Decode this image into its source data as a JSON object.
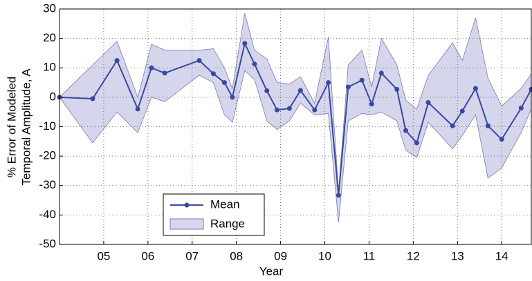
{
  "chart_data": {
    "type": "line-band",
    "ylabel": [
      "% Error of Modeled",
      "Temporal Amplitude, A"
    ],
    "xlabel": "Year",
    "x": [
      4.0,
      4.75,
      5.3,
      5.77,
      6.08,
      6.38,
      7.16,
      7.48,
      7.73,
      7.91,
      8.19,
      8.41,
      8.69,
      8.92,
      9.2,
      9.45,
      9.77,
      10.08,
      10.31,
      10.53,
      10.84,
      11.06,
      11.28,
      11.63,
      11.83,
      12.08,
      12.34,
      12.89,
      13.11,
      13.41,
      13.69,
      14.0,
      14.44,
      14.67
    ],
    "series": [
      {
        "name": "Mean",
        "color": "#3a48a0",
        "values": [
          0,
          -0.5,
          12.5,
          -4,
          10,
          8.2,
          12.5,
          8,
          5,
          0,
          18.3,
          11.3,
          2.2,
          -4.3,
          -3.8,
          2.3,
          -4.3,
          5,
          -33.3,
          3.5,
          5.8,
          -2.3,
          8.2,
          2.7,
          -11.3,
          -15.5,
          -1.8,
          -9.7,
          -4.7,
          3,
          -9.7,
          -14.3,
          -3.7,
          2.7
        ]
      },
      {
        "name": "Range",
        "color": "#d5d5ec",
        "upper": [
          0,
          11,
          19,
          0,
          18,
          16,
          16,
          16.5,
          10,
          3,
          28.5,
          16,
          13,
          5,
          4.5,
          7,
          -2,
          20.5,
          -32,
          11,
          16,
          3.5,
          20,
          11,
          -1,
          -4,
          7.5,
          18.5,
          12.5,
          27,
          6.5,
          -3,
          3,
          8
        ],
        "lower": [
          0,
          -15.5,
          -5,
          -12,
          0,
          -1.5,
          7.5,
          5,
          -6,
          -8.5,
          9,
          6,
          -8,
          -11,
          -8,
          -2,
          -6,
          -5.5,
          -42.5,
          -8,
          -5.5,
          -6,
          -5,
          -8,
          -18,
          -20.5,
          -8.5,
          -17.5,
          -13,
          -6,
          -27.5,
          -24,
          -12,
          -4
        ]
      }
    ],
    "xlim": [
      4.0,
      14.67
    ],
    "xticks": [
      {
        "value": 5,
        "label": "05"
      },
      {
        "value": 6,
        "label": "06"
      },
      {
        "value": 7,
        "label": "07"
      },
      {
        "value": 8,
        "label": "08"
      },
      {
        "value": 9,
        "label": "09"
      },
      {
        "value": 10,
        "label": "10"
      },
      {
        "value": 11,
        "label": "11"
      },
      {
        "value": 12,
        "label": "12"
      },
      {
        "value": 13,
        "label": "13"
      },
      {
        "value": 14,
        "label": "14"
      }
    ],
    "ylim": [
      -50,
      30
    ],
    "yticks": [
      -50,
      -40,
      -30,
      -20,
      -10,
      0,
      10,
      20,
      30
    ],
    "grid": true,
    "legend": "lower-left"
  }
}
